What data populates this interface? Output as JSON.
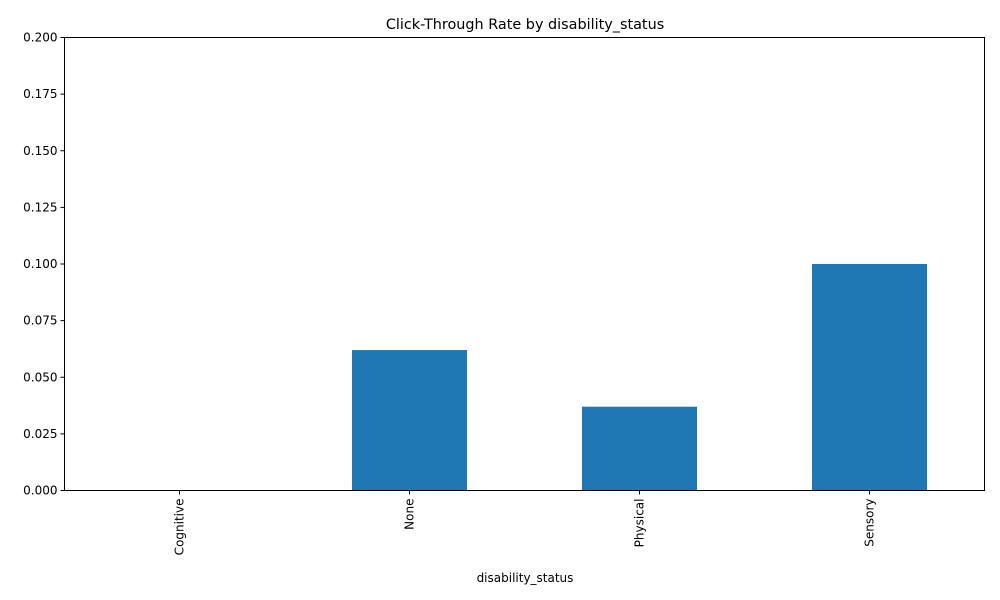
{
  "chart_data": {
    "type": "bar",
    "title": "Click-Through Rate by disability_status",
    "xlabel": "disability_status",
    "ylabel": "",
    "categories": [
      "Cognitive",
      "None",
      "Physical",
      "Sensory"
    ],
    "values": [
      0.0,
      0.062,
      0.037,
      0.1
    ],
    "ylim": [
      0,
      0.2
    ],
    "yticks": [
      0.0,
      0.025,
      0.05,
      0.075,
      0.1,
      0.125,
      0.15,
      0.175,
      0.2
    ],
    "ytick_labels": [
      "0.000",
      "0.025",
      "0.050",
      "0.075",
      "0.100",
      "0.125",
      "0.150",
      "0.175",
      "0.200"
    ],
    "bar_color": "#1f77b4",
    "grid": false,
    "legend": "none"
  }
}
